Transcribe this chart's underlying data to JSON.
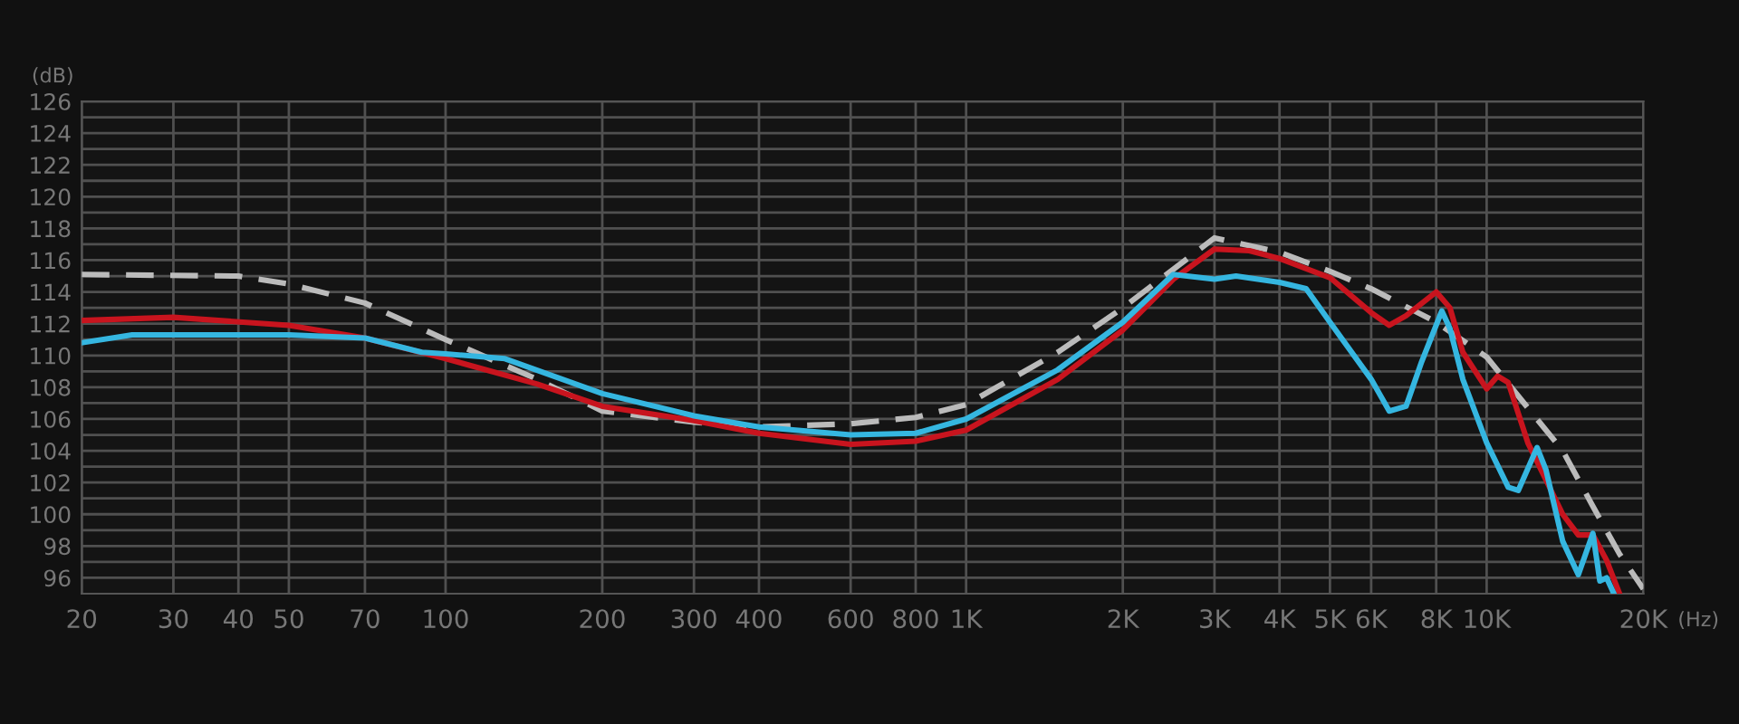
{
  "chart_data": {
    "type": "line",
    "ylabel": "(dB)",
    "xlabel": "(Hz)",
    "log": "x",
    "grid": true,
    "marker": "none",
    "xlim": [
      20,
      20000
    ],
    "ylim": [
      95,
      126
    ],
    "xticks": [
      20,
      30,
      40,
      50,
      70,
      100,
      200,
      300,
      400,
      600,
      800,
      {
        "value": 1000,
        "label": "1K"
      },
      {
        "value": 2000,
        "label": "2K"
      },
      {
        "value": 3000,
        "label": "3K"
      },
      {
        "value": 4000,
        "label": "4K"
      },
      {
        "value": 5000,
        "label": "5K"
      },
      {
        "value": 6000,
        "label": "6K"
      },
      {
        "value": 8000,
        "label": "8K"
      },
      {
        "value": 10000,
        "label": "10K"
      },
      {
        "value": 20000,
        "label": "20K"
      }
    ],
    "yticks": [
      96,
      {
        "value": 97,
        "label": null
      },
      98,
      {
        "value": 99,
        "label": null
      },
      100,
      {
        "value": 101,
        "label": null
      },
      102,
      {
        "value": 103,
        "label": null
      },
      104,
      {
        "value": 105,
        "label": null
      },
      106,
      {
        "value": 107,
        "label": null
      },
      108,
      {
        "value": 109,
        "label": null
      },
      110,
      {
        "value": 111,
        "label": null
      },
      112,
      {
        "value": 113,
        "label": null
      },
      114,
      {
        "value": 115,
        "label": null
      },
      116,
      {
        "value": 117,
        "label": null
      },
      118,
      {
        "value": 119,
        "label": null
      },
      120,
      {
        "value": 121,
        "label": null
      },
      122,
      {
        "value": 123,
        "label": null
      },
      124,
      {
        "value": 125,
        "label": null
      },
      126
    ],
    "series": [
      {
        "color": "#bbbbbb",
        "line_style": "dashed",
        "x": [
          20,
          40,
          50,
          70,
          100,
          150,
          200,
          300,
          400,
          600,
          800,
          1000,
          1500,
          2000,
          3000,
          4000,
          5000,
          6000,
          8000,
          10000,
          12000,
          14000,
          16000,
          18000,
          20000
        ],
        "values": [
          115.1,
          115,
          114.5,
          113.3,
          111,
          108.5,
          106.5,
          105.8,
          105.5,
          105.7,
          106.1,
          106.9,
          110.2,
          113,
          117.4,
          116.5,
          115.3,
          114.2,
          112.1,
          109.9,
          106.7,
          104,
          100.5,
          97.5,
          95.3
        ]
      },
      {
        "color": "#c8141e",
        "line_style": "solid",
        "x": [
          20,
          30,
          50,
          70,
          100,
          150,
          200,
          300,
          400,
          600,
          800,
          1000,
          1500,
          2000,
          2500,
          3000,
          3500,
          4000,
          5000,
          6000,
          6500,
          7000,
          8000,
          8500,
          9000,
          10000,
          10500,
          11000,
          12000,
          14000,
          15000,
          16000,
          17000,
          18000
        ],
        "values": [
          112.2,
          112.4,
          111.9,
          111.1,
          109.8,
          108.2,
          106.8,
          105.9,
          105.1,
          104.4,
          104.6,
          105.3,
          108.5,
          111.6,
          114.8,
          116.7,
          116.6,
          116.1,
          114.9,
          112.7,
          111.9,
          112.5,
          114,
          113,
          110.2,
          107.9,
          108.7,
          108.3,
          104.5,
          100,
          98.7,
          98.7,
          97.1,
          95
        ]
      },
      {
        "color": "#35b6e0",
        "line_style": "solid",
        "x": [
          20,
          25,
          30,
          50,
          70,
          90,
          100,
          130,
          200,
          300,
          400,
          600,
          800,
          1000,
          1500,
          2000,
          2500,
          3000,
          3300,
          4000,
          4500,
          5000,
          6000,
          6500,
          7000,
          7500,
          8200,
          8500,
          9000,
          10000,
          11000,
          11500,
          12500,
          13000,
          14000,
          15000,
          16000,
          16500,
          17000,
          17500
        ],
        "values": [
          110.8,
          111.3,
          111.3,
          111.3,
          111.1,
          110.2,
          110.1,
          109.8,
          107.6,
          106.2,
          105.5,
          105,
          105.1,
          106,
          109.1,
          112.1,
          115.1,
          114.8,
          115,
          114.6,
          114.2,
          112.1,
          108.5,
          106.5,
          106.8,
          109.6,
          112.8,
          111.7,
          108.5,
          104.5,
          101.7,
          101.5,
          104.2,
          102.8,
          98.3,
          96.2,
          98.8,
          95.8,
          96,
          95.1
        ]
      }
    ]
  }
}
